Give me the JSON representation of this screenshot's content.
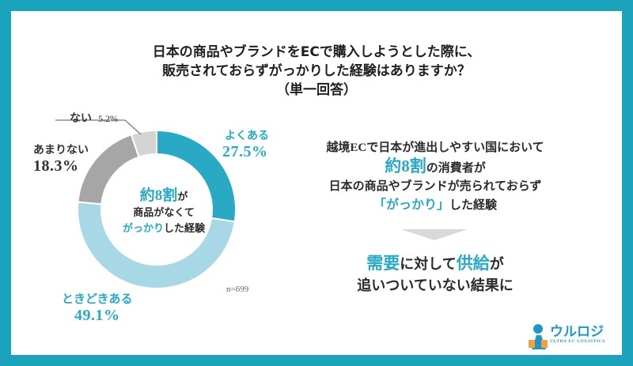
{
  "title": {
    "line1": "日本の商品やブランドをECで購入しようとした際に、",
    "line2": "販売されておらずがっかりした経験はありますか？",
    "line3": "（単一回答）"
  },
  "chart_data": {
    "type": "pie",
    "variant": "donut",
    "categories": [
      "よくある",
      "ときどきある",
      "あまりない",
      "ない"
    ],
    "values": [
      27.5,
      49.1,
      18.3,
      5.2
    ],
    "value_labels": [
      "27.5%",
      "49.1%",
      "18.3%",
      "5.2%"
    ],
    "colors": [
      "#29a9c3",
      "#a8d8e6",
      "#a6a6a6",
      "#d4d4d4"
    ],
    "start": "top, clockwise",
    "sample_size": "n=699"
  },
  "center_text": {
    "big": "約8割",
    "suffix": "が",
    "line2": "商品がなくて",
    "teal": "がっかり",
    "line3_rest": "した経験"
  },
  "right_text": {
    "line1": "越境ECで日本が進出しやすい国において",
    "big": "約8割",
    "line2_rest": "の消費者が",
    "line3": "日本の商品やブランドが売られておらず",
    "teal": "「がっかり」",
    "line4_rest": "した経験",
    "c1": "需要",
    "c1_rest": "に対して",
    "c2": "供給",
    "c2_rest": "が",
    "line6": "追いついていない結果に"
  },
  "logo": {
    "text": "ウルロジ",
    "sub": "ULTRA EC LOGISTICS"
  }
}
